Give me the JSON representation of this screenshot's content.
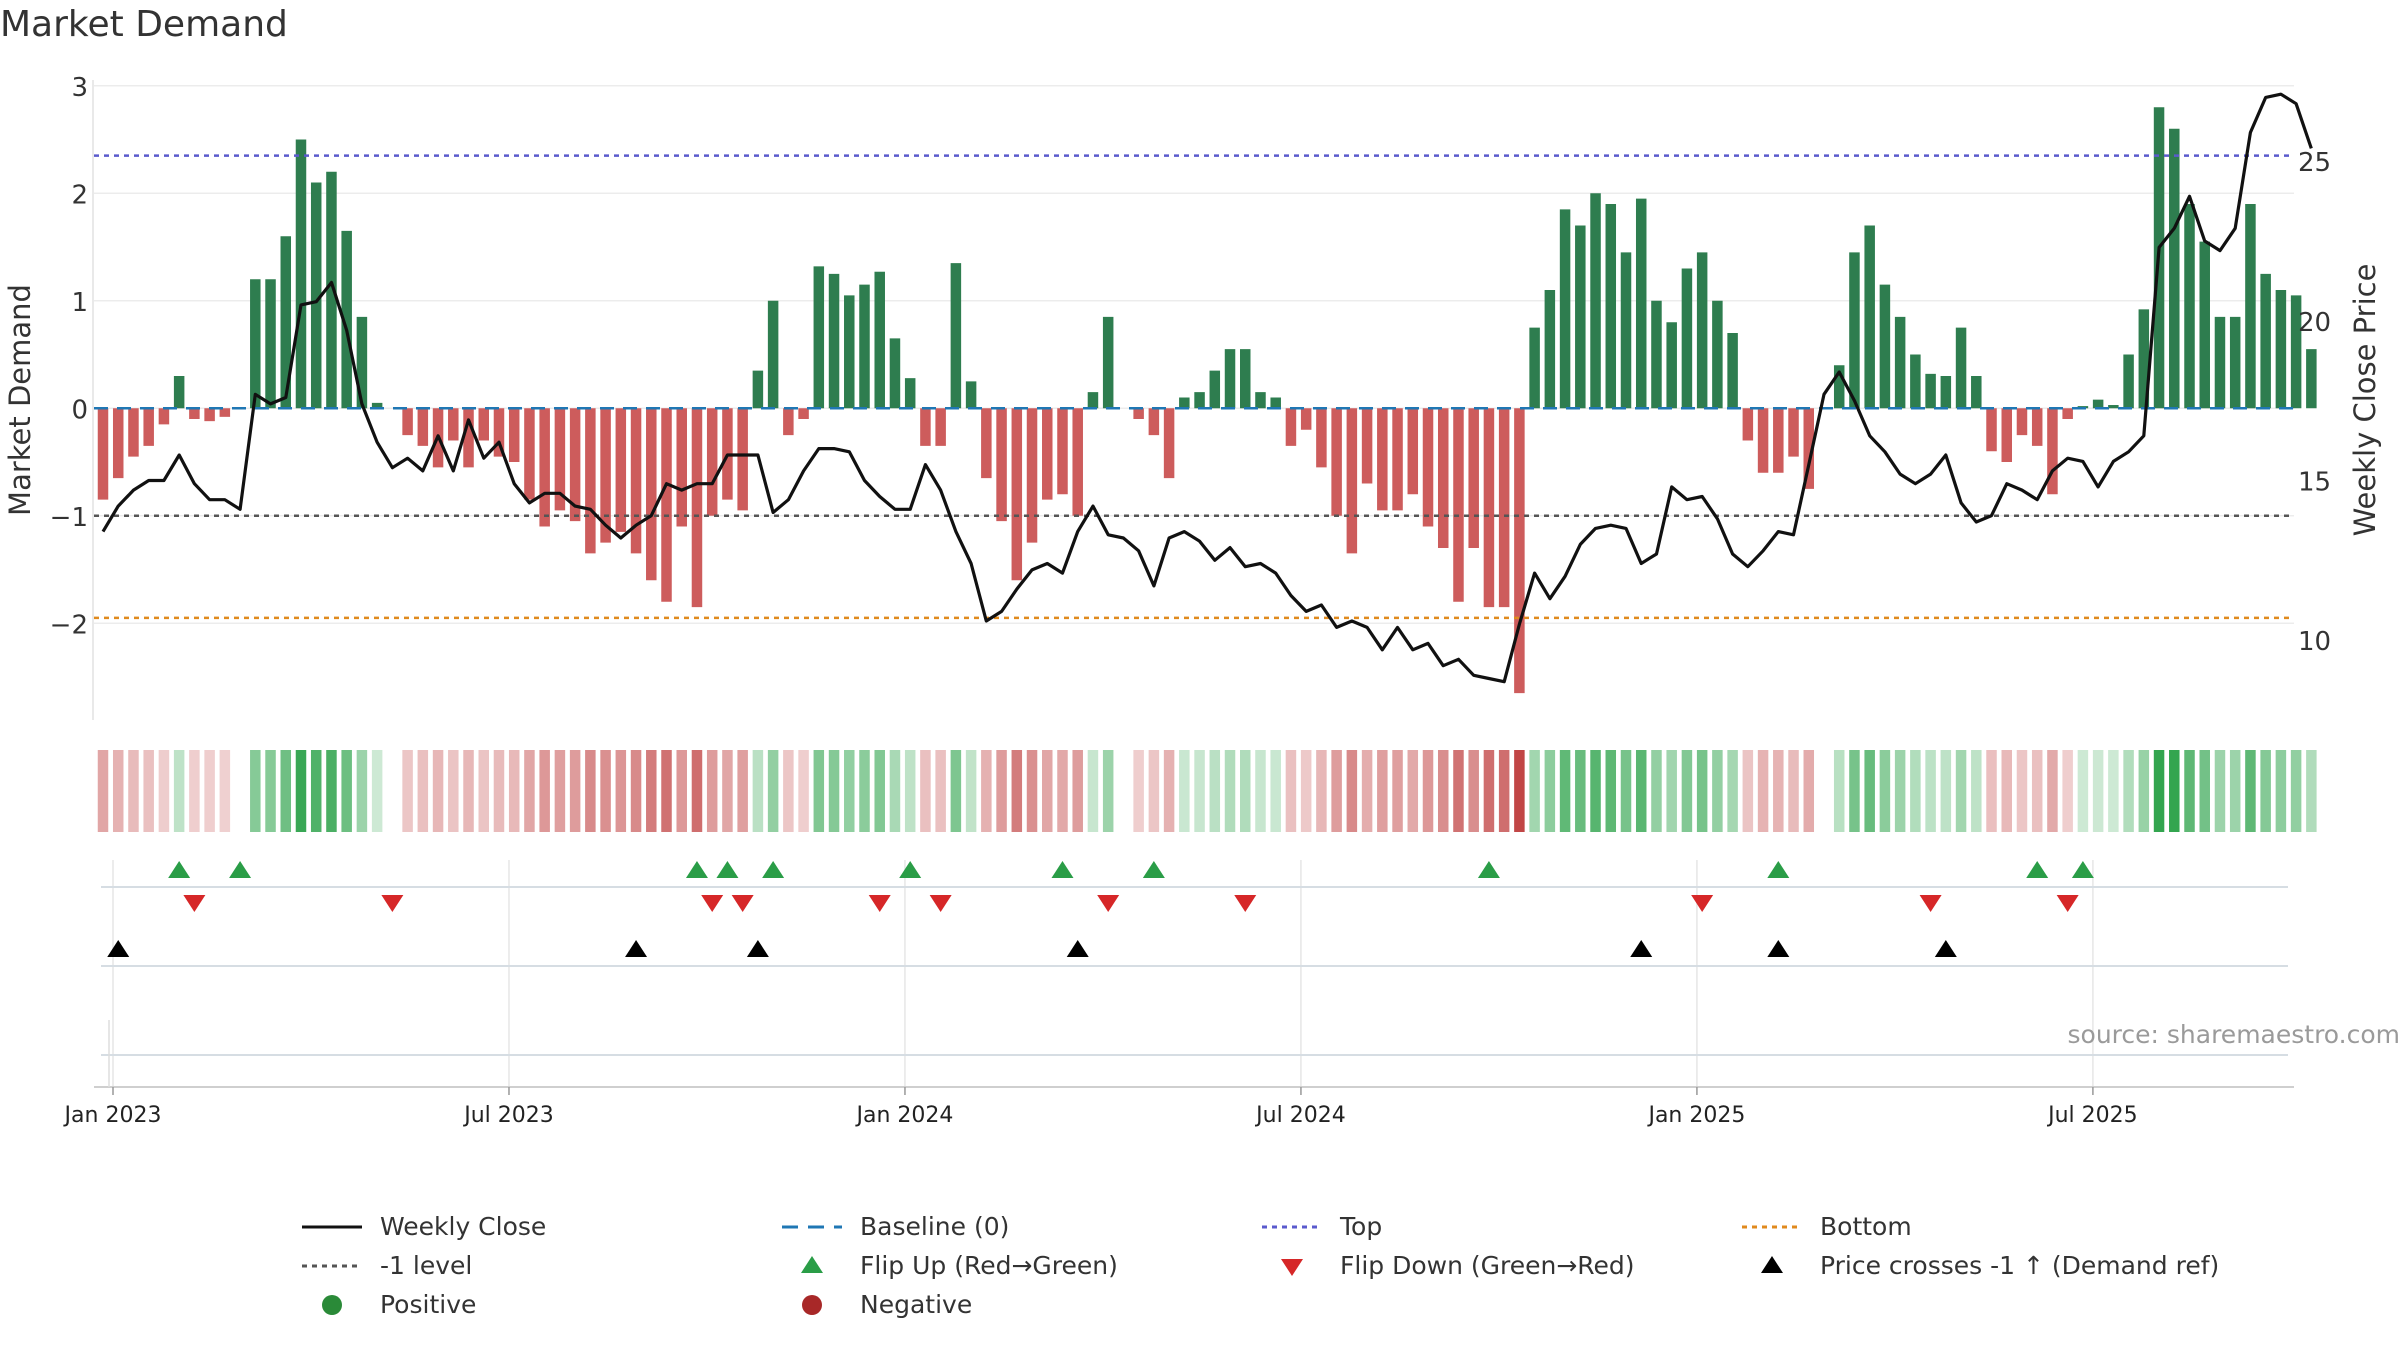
{
  "title": "Market Demand",
  "source": "source: sharemaestro.com",
  "colors": {
    "positive_bar": "#2e7d4f",
    "negative_bar": "#cd5c5c",
    "price_line": "#111111",
    "baseline": "#1f77b4",
    "top": "#5a5acd",
    "bottom": "#e08a1e",
    "minus1": "#555555",
    "flip_up": "#2a9d47",
    "flip_down": "#d62728",
    "cross": "#000000"
  },
  "chart_data": {
    "type": "bar",
    "title": "Market Demand",
    "ylabel": "Market Demand",
    "y2label": "Weekly Close Price",
    "ylim": [
      -2.9,
      3.1
    ],
    "y2lim": [
      7.5,
      27.7
    ],
    "yticks": [
      3,
      2,
      1,
      0,
      -1,
      -2
    ],
    "ytick_labels": [
      "3",
      "2",
      "1",
      "0",
      "−1",
      "−2"
    ],
    "y2ticks": [
      25,
      20,
      15,
      10
    ],
    "y2tick_labels": [
      "25",
      "20",
      "15",
      "10"
    ],
    "x_start_week_index": 0,
    "x_ticks": [
      {
        "week": 0,
        "label": "Jan 2023"
      },
      {
        "week": 26,
        "label": "Jul 2023"
      },
      {
        "week": 52,
        "label": "Jan 2024"
      },
      {
        "week": 78,
        "label": "Jul 2024"
      },
      {
        "week": 104,
        "label": "Jan 2025"
      },
      {
        "week": 130,
        "label": "Jul 2025"
      }
    ],
    "reference_lines": {
      "baseline": 0,
      "top": 2.35,
      "minus1": -1,
      "bottom": -1.95
    },
    "demand": [
      -0.85,
      -0.65,
      -0.45,
      -0.35,
      -0.15,
      0.3,
      -0.1,
      -0.12,
      -0.08,
      0,
      1.2,
      1.2,
      1.6,
      2.5,
      2.1,
      2.2,
      1.65,
      0.85,
      0.05,
      0,
      -0.25,
      -0.35,
      -0.55,
      -0.3,
      -0.55,
      -0.3,
      -0.45,
      -0.5,
      -0.85,
      -1.1,
      -0.95,
      -1.05,
      -1.35,
      -1.25,
      -1.15,
      -1.35,
      -1.6,
      -1.8,
      -1.1,
      -1.85,
      -1.0,
      -0.85,
      -0.95,
      0.35,
      1.0,
      -0.25,
      -0.1,
      1.32,
      1.25,
      1.05,
      1.15,
      1.27,
      0.65,
      0.28,
      -0.35,
      -0.35,
      1.35,
      0.25,
      -0.65,
      -1.05,
      -1.6,
      -1.25,
      -0.85,
      -0.8,
      -1.0,
      0.15,
      0.85,
      0,
      -0.1,
      -0.25,
      -0.65,
      0.1,
      0.15,
      0.35,
      0.55,
      0.55,
      0.15,
      0.1,
      -0.35,
      -0.2,
      -0.55,
      -1.0,
      -1.35,
      -0.7,
      -0.95,
      -0.95,
      -0.8,
      -1.1,
      -1.3,
      -1.8,
      -1.3,
      -1.85,
      -1.85,
      -2.65,
      0.75,
      1.1,
      1.85,
      1.7,
      2.0,
      1.9,
      1.45,
      1.95,
      1.0,
      0.8,
      1.3,
      1.45,
      1.0,
      0.7,
      -0.3,
      -0.6,
      -0.6,
      -0.45,
      -0.75,
      0,
      0.4,
      1.45,
      1.7,
      1.15,
      0.85,
      0.5,
      0.32,
      0.3,
      0.75,
      0.3,
      -0.4,
      -0.5,
      -0.25,
      -0.35,
      -0.8,
      -0.1,
      0.02,
      0.08,
      0.03,
      0.5,
      0.92,
      2.8,
      2.6,
      1.9,
      1.55,
      0.85,
      0.85,
      1.9,
      1.25,
      1.1,
      1.05,
      0.55
    ],
    "price": [
      13.4,
      14.2,
      14.7,
      15.0,
      15.0,
      15.8,
      14.9,
      14.4,
      14.4,
      14.1,
      17.7,
      17.4,
      17.6,
      20.5,
      20.6,
      21.2,
      19.7,
      17.4,
      16.2,
      15.4,
      15.7,
      15.3,
      16.4,
      15.3,
      16.9,
      15.7,
      16.2,
      14.9,
      14.3,
      14.6,
      14.6,
      14.2,
      14.1,
      13.6,
      13.2,
      13.6,
      13.9,
      14.9,
      14.7,
      14.9,
      14.9,
      15.8,
      15.8,
      15.8,
      14.0,
      14.4,
      15.3,
      16.0,
      16.0,
      15.9,
      15.0,
      14.5,
      14.1,
      14.1,
      15.5,
      14.7,
      13.4,
      12.4,
      10.6,
      10.9,
      11.6,
      12.2,
      12.4,
      12.1,
      13.4,
      14.2,
      13.3,
      13.2,
      12.8,
      11.7,
      13.2,
      13.4,
      13.1,
      12.5,
      12.9,
      12.3,
      12.4,
      12.1,
      11.4,
      10.9,
      11.1,
      10.4,
      10.6,
      10.4,
      9.7,
      10.4,
      9.7,
      9.9,
      9.2,
      9.4,
      8.9,
      8.8,
      8.7,
      10.5,
      12.1,
      11.3,
      12.0,
      13.0,
      13.5,
      13.6,
      13.5,
      12.4,
      12.7,
      14.8,
      14.4,
      14.5,
      13.8,
      12.7,
      12.3,
      12.8,
      13.4,
      13.3,
      15.5,
      17.7,
      18.4,
      17.5,
      16.4,
      15.9,
      15.2,
      14.9,
      15.2,
      15.8,
      14.3,
      13.7,
      13.9,
      14.9,
      14.7,
      14.4,
      15.3,
      15.7,
      15.6,
      14.8,
      15.6,
      15.9,
      16.4,
      22.3,
      22.9,
      23.9,
      22.5,
      22.2,
      22.9,
      25.9,
      27.0,
      27.1,
      26.8,
      25.4
    ],
    "flip_up_weeks": [
      5,
      9,
      39,
      41,
      44,
      53,
      63,
      69,
      91,
      110,
      127,
      130
    ],
    "flip_down_weeks": [
      6,
      19,
      40,
      42,
      51,
      55,
      66,
      75,
      105,
      120,
      129
    ],
    "cross_weeks": [
      1,
      35,
      43,
      64,
      101,
      110,
      121
    ]
  },
  "legend": [
    {
      "label": "Weekly Close",
      "symbol": "solid-line",
      "color": "#111111"
    },
    {
      "label": "Baseline (0)",
      "symbol": "dashed-line",
      "color": "#1f77b4"
    },
    {
      "label": "Top",
      "symbol": "dotted-line",
      "color": "#5a5acd"
    },
    {
      "label": "Bottom",
      "symbol": "dotted-line",
      "color": "#e08a1e"
    },
    {
      "label": "-1 level",
      "symbol": "dotted-line",
      "color": "#555555"
    },
    {
      "label": "Flip Up (Red→Green)",
      "symbol": "triangle-up",
      "color": "#2a9d47"
    },
    {
      "label": "Flip Down (Green→Red)",
      "symbol": "triangle-down",
      "color": "#d62728"
    },
    {
      "label": "Price crosses -1 ↑ (Demand ref)",
      "symbol": "triangle-up",
      "color": "#000000"
    },
    {
      "label": "Positive",
      "symbol": "dot",
      "color": "#2a8a38"
    },
    {
      "label": "Negative",
      "symbol": "dot",
      "color": "#a82828"
    }
  ]
}
